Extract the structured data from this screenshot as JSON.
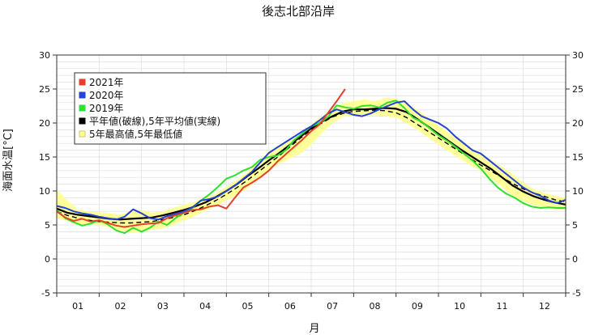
{
  "chart_data": {
    "type": "line",
    "title": "後志北部沿岸",
    "xlabel": "月",
    "ylabel": "海面水温[°C]",
    "ylim": [
      -5,
      30
    ],
    "yticks": [
      -5,
      0,
      5,
      10,
      15,
      20,
      25,
      30
    ],
    "categories": [
      "01",
      "02",
      "03",
      "04",
      "05",
      "06",
      "07",
      "08",
      "09",
      "10",
      "11",
      "12"
    ],
    "x_unit": "month (1.0 = Jan 1, 13.0 = Dec 31)",
    "xlim": [
      1,
      13
    ],
    "grid": true,
    "legend_position": "top-left",
    "legend": [
      {
        "label": "2021年",
        "key": "y2021"
      },
      {
        "label": "2020年",
        "key": "y2020"
      },
      {
        "label": "2019年",
        "key": "y2019"
      },
      {
        "label": "平年値(破線),5年平均値(実線)",
        "key": "normal"
      },
      {
        "label": "5年最高値,5年最低値",
        "key": "band"
      }
    ],
    "colors": {
      "y2021": "#e4412c",
      "y2020": "#2342d6",
      "y2019": "#2fe02f",
      "normal": "#000000",
      "band_fill": "#ffff99",
      "band_edge": "#cccc66",
      "grid": "#dddddd"
    },
    "series": [
      {
        "name": "2021年",
        "key": "y2021",
        "x": [
          1.0,
          1.2,
          1.4,
          1.6,
          1.8,
          2.0,
          2.2,
          2.4,
          2.6,
          2.8,
          3.0,
          3.2,
          3.4,
          3.6,
          3.8,
          4.0,
          4.2,
          4.4,
          4.6,
          4.8,
          5.0,
          5.2,
          5.4,
          5.6,
          5.8,
          6.0,
          6.2,
          6.4,
          6.6,
          6.8,
          7.0,
          7.2,
          7.4,
          7.6,
          7.8
        ],
        "values": [
          7.0,
          6.1,
          5.6,
          5.9,
          5.5,
          5.7,
          5.3,
          4.9,
          4.7,
          4.9,
          5.1,
          5.2,
          5.3,
          6.0,
          6.4,
          6.8,
          7.2,
          7.3,
          7.7,
          7.9,
          7.4,
          9.0,
          10.5,
          11.2,
          12.0,
          13.0,
          14.3,
          15.4,
          16.5,
          17.6,
          18.8,
          19.8,
          21.5,
          23.2,
          25.0
        ]
      },
      {
        "name": "2020年",
        "key": "y2020",
        "x": [
          1.0,
          1.2,
          1.4,
          1.6,
          1.8,
          2.0,
          2.2,
          2.4,
          2.6,
          2.8,
          3.0,
          3.2,
          3.4,
          3.6,
          3.8,
          4.0,
          4.2,
          4.4,
          4.6,
          4.8,
          5.0,
          5.2,
          5.4,
          5.6,
          5.8,
          6.0,
          6.2,
          6.4,
          6.6,
          6.8,
          7.0,
          7.2,
          7.4,
          7.6,
          7.8,
          8.0,
          8.2,
          8.4,
          8.6,
          8.8,
          9.0,
          9.2,
          9.4,
          9.6,
          9.8,
          10.0,
          10.2,
          10.4,
          10.6,
          10.8,
          11.0,
          11.2,
          11.4,
          11.6,
          11.8,
          12.0,
          12.2,
          12.4,
          12.6,
          12.8,
          13.0
        ],
        "values": [
          7.8,
          7.5,
          7.0,
          6.7,
          6.5,
          6.2,
          6.0,
          5.8,
          6.2,
          7.3,
          6.7,
          6.0,
          5.8,
          6.3,
          6.6,
          7.0,
          7.6,
          8.6,
          8.8,
          9.2,
          10.0,
          10.8,
          11.8,
          12.8,
          14.2,
          15.6,
          16.4,
          17.2,
          18.0,
          18.8,
          19.5,
          20.4,
          21.4,
          22.0,
          21.6,
          21.2,
          21.0,
          21.4,
          22.0,
          22.5,
          23.0,
          23.2,
          22.0,
          21.0,
          20.5,
          20.0,
          19.2,
          18.0,
          17.0,
          16.0,
          15.5,
          14.5,
          13.5,
          12.5,
          11.5,
          10.5,
          9.8,
          9.3,
          8.6,
          8.2,
          8.7
        ]
      },
      {
        "name": "2019年",
        "key": "y2019",
        "x": [
          1.0,
          1.2,
          1.4,
          1.6,
          1.8,
          2.0,
          2.2,
          2.4,
          2.6,
          2.8,
          3.0,
          3.2,
          3.4,
          3.6,
          3.8,
          4.0,
          4.2,
          4.4,
          4.6,
          4.8,
          5.0,
          5.2,
          5.4,
          5.6,
          5.8,
          6.0,
          6.2,
          6.4,
          6.6,
          6.8,
          7.0,
          7.2,
          7.4,
          7.6,
          7.8,
          8.0,
          8.2,
          8.4,
          8.6,
          8.8,
          9.0,
          9.2,
          9.4,
          9.6,
          9.8,
          10.0,
          10.2,
          10.4,
          10.6,
          10.8,
          11.0,
          11.2,
          11.4,
          11.6,
          11.8,
          12.0,
          12.2,
          12.4,
          12.6,
          12.8,
          13.0
        ],
        "values": [
          7.2,
          6.0,
          5.4,
          4.9,
          5.2,
          5.7,
          5.1,
          4.2,
          3.8,
          4.6,
          4.0,
          4.6,
          5.5,
          5.0,
          6.0,
          6.8,
          7.5,
          8.6,
          9.5,
          10.6,
          11.8,
          12.3,
          13.0,
          13.5,
          14.6,
          15.0,
          15.2,
          16.0,
          17.5,
          18.5,
          19.5,
          20.0,
          20.9,
          22.6,
          22.3,
          22.1,
          22.5,
          22.6,
          22.3,
          23.0,
          23.3,
          22.2,
          20.8,
          20.2,
          19.2,
          18.2,
          17.4,
          16.5,
          15.5,
          14.5,
          13.3,
          11.8,
          10.5,
          9.6,
          9.0,
          8.2,
          7.7,
          7.5,
          7.6,
          7.5,
          7.5
        ]
      },
      {
        "name": "5年平均値",
        "key": "normal",
        "style": "solid",
        "x": [
          1.0,
          1.25,
          1.5,
          1.75,
          2.0,
          2.25,
          2.5,
          2.75,
          3.0,
          3.25,
          3.5,
          3.75,
          4.0,
          4.25,
          4.5,
          4.75,
          5.0,
          5.25,
          5.5,
          5.75,
          6.0,
          6.25,
          6.5,
          6.75,
          7.0,
          7.25,
          7.5,
          7.75,
          8.0,
          8.25,
          8.5,
          8.75,
          9.0,
          9.25,
          9.5,
          9.75,
          10.0,
          10.25,
          10.5,
          10.75,
          11.0,
          11.25,
          11.5,
          11.75,
          12.0,
          12.25,
          12.5,
          12.75,
          13.0
        ],
        "values": [
          7.4,
          6.8,
          6.5,
          6.3,
          6.1,
          5.9,
          5.8,
          5.9,
          6.0,
          6.1,
          6.4,
          6.8,
          7.2,
          7.7,
          8.3,
          9.1,
          10.0,
          11.0,
          12.2,
          13.3,
          14.5,
          15.6,
          16.8,
          18.0,
          19.2,
          20.2,
          21.0,
          21.7,
          22.0,
          22.0,
          22.1,
          22.2,
          22.1,
          21.6,
          20.6,
          19.5,
          18.4,
          17.3,
          16.2,
          15.2,
          14.2,
          13.2,
          12.0,
          10.8,
          9.9,
          9.2,
          8.7,
          8.3,
          8.0
        ]
      },
      {
        "name": "平年値",
        "key": "normal",
        "style": "dashed",
        "x": [
          1.0,
          1.25,
          1.5,
          1.75,
          2.0,
          2.25,
          2.5,
          2.75,
          3.0,
          3.25,
          3.5,
          3.75,
          4.0,
          4.25,
          4.5,
          4.75,
          5.0,
          5.25,
          5.5,
          5.75,
          6.0,
          6.25,
          6.5,
          6.75,
          7.0,
          7.25,
          7.5,
          7.75,
          8.0,
          8.25,
          8.5,
          8.75,
          9.0,
          9.25,
          9.5,
          9.75,
          10.0,
          10.25,
          10.5,
          10.75,
          11.0,
          11.25,
          11.5,
          11.75,
          12.0,
          12.25,
          12.5,
          12.75,
          13.0
        ],
        "values": [
          7.0,
          6.4,
          6.0,
          5.7,
          5.5,
          5.4,
          5.3,
          5.3,
          5.4,
          5.5,
          5.8,
          6.1,
          6.5,
          7.1,
          7.8,
          8.6,
          9.5,
          10.5,
          11.6,
          12.8,
          14.0,
          15.2,
          16.5,
          17.8,
          19.0,
          20.0,
          20.9,
          21.4,
          21.7,
          21.8,
          21.9,
          21.8,
          21.5,
          20.8,
          19.8,
          18.8,
          17.8,
          16.8,
          15.8,
          14.8,
          13.8,
          12.9,
          12.0,
          11.1,
          10.3,
          9.7,
          9.2,
          8.7,
          8.4
        ]
      }
    ],
    "band": {
      "name": "5年最高値,5年最低値",
      "key": "band",
      "x": [
        1.0,
        1.25,
        1.5,
        1.75,
        2.0,
        2.25,
        2.5,
        2.75,
        3.0,
        3.25,
        3.5,
        3.75,
        4.0,
        4.25,
        4.5,
        4.75,
        5.0,
        5.25,
        5.5,
        5.75,
        6.0,
        6.25,
        6.5,
        6.75,
        7.0,
        7.25,
        7.5,
        7.75,
        8.0,
        8.25,
        8.5,
        8.75,
        9.0,
        9.25,
        9.5,
        9.75,
        10.0,
        10.25,
        10.5,
        10.75,
        11.0,
        11.25,
        11.5,
        11.75,
        12.0,
        12.25,
        12.5,
        12.75,
        13.0
      ],
      "high": [
        10.2,
        8.6,
        7.3,
        7.0,
        6.9,
        6.7,
        6.5,
        7.0,
        7.2,
        6.8,
        7.0,
        7.5,
        8.0,
        8.4,
        9.0,
        9.6,
        10.6,
        11.6,
        12.8,
        14.2,
        15.8,
        16.8,
        17.5,
        18.2,
        19.8,
        21.0,
        22.0,
        23.0,
        23.2,
        23.5,
        23.2,
        23.7,
        23.6,
        22.9,
        22.0,
        20.8,
        19.6,
        18.6,
        17.5,
        16.4,
        15.6,
        14.5,
        13.6,
        12.5,
        11.2,
        10.3,
        9.7,
        9.3,
        9.0
      ],
      "low": [
        6.0,
        5.6,
        5.0,
        5.0,
        5.0,
        4.6,
        4.2,
        3.8,
        4.0,
        4.3,
        4.5,
        5.0,
        5.7,
        6.3,
        7.1,
        7.8,
        8.6,
        9.5,
        10.4,
        11.8,
        13.2,
        14.0,
        14.8,
        15.5,
        16.8,
        18.5,
        20.0,
        20.9,
        21.0,
        21.0,
        21.2,
        21.0,
        20.8,
        20.0,
        19.0,
        17.9,
        16.8,
        15.8,
        14.8,
        13.8,
        13.0,
        11.8,
        10.6,
        9.3,
        8.5,
        7.9,
        7.5,
        7.3,
        7.3
      ]
    }
  }
}
